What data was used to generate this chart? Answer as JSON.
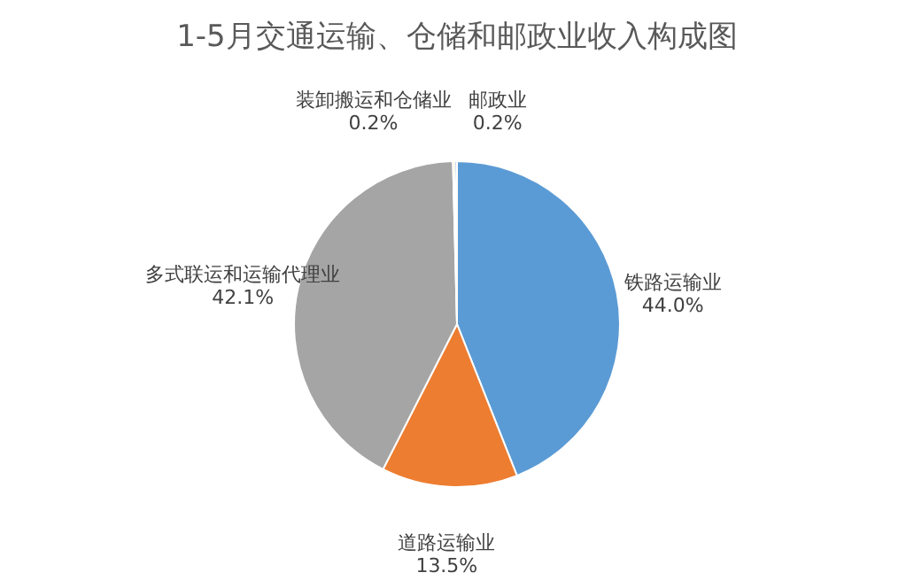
{
  "chart_data": {
    "type": "pie",
    "title": "1-5月交通运输、仓储和邮政业收入构成图",
    "categories": [
      "铁路运输业",
      "道路运输业",
      "多式联运和运输代理业",
      "装卸搬运和仓储业",
      "邮政业"
    ],
    "values": [
      44.0,
      13.5,
      42.1,
      0.2,
      0.2
    ],
    "value_labels": [
      "44.0%",
      "13.5%",
      "42.1%",
      "0.2%",
      "0.2%"
    ],
    "colors": [
      "#5b9bd5",
      "#ed7d31",
      "#a5a5a5",
      "#ffc000",
      "#4472c4"
    ],
    "legend": false
  }
}
